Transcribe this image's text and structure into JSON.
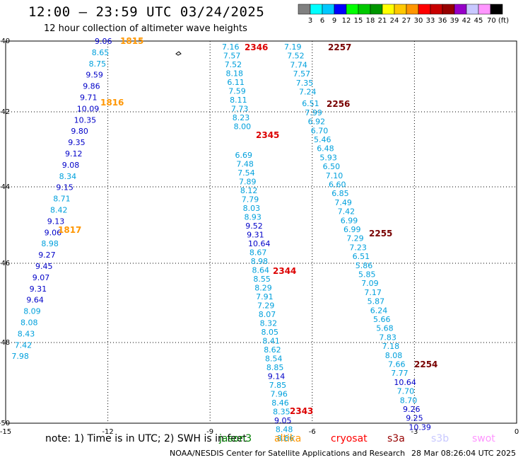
{
  "title": "12:00 – 23:59 UTC 03/24/2025",
  "subtitle": "12 hour collection of altimeter wave heights",
  "colorbar": {
    "colors": [
      "#808080",
      "#00ffff",
      "#00c8ff",
      "#0000ff",
      "#00ff00",
      "#00c800",
      "#009600",
      "#ffff00",
      "#ffc800",
      "#ff9600",
      "#ff0000",
      "#c80000",
      "#960000",
      "#9600c8",
      "#c8c8ff",
      "#ff96ff",
      "#000000"
    ],
    "labels": [
      "3",
      "6",
      "9",
      "12",
      "15",
      "18",
      "21",
      "24",
      "27",
      "30",
      "33",
      "36",
      "39",
      "42",
      "45",
      "70 (ft)"
    ]
  },
  "axes": {
    "x_ticks": [
      "-15",
      "-12",
      "-9",
      "-6",
      "-3",
      "0"
    ],
    "y_ticks": [
      "-40",
      "-42",
      "-44",
      "-46",
      "-48",
      "-50"
    ]
  },
  "tracks": [
    {
      "name": "track-west",
      "labels": [
        {
          "v": "9.06",
          "c": "#0000c8"
        },
        {
          "v": "8.65",
          "c": "#00a0dc"
        },
        {
          "v": "8.75",
          "c": "#00a0dc"
        },
        {
          "v": "9.59",
          "c": "#0000c8"
        },
        {
          "v": "9.86",
          "c": "#0000c8"
        },
        {
          "v": "9.71",
          "c": "#0000c8"
        },
        {
          "v": "10.09",
          "c": "#0000c8"
        },
        {
          "v": "10.35",
          "c": "#0000c8"
        },
        {
          "v": "9.80",
          "c": "#0000c8"
        },
        {
          "v": "9.35",
          "c": "#0000c8"
        },
        {
          "v": "9.12",
          "c": "#0000c8"
        },
        {
          "v": "9.08",
          "c": "#0000c8"
        },
        {
          "v": "8.34",
          "c": "#00a0dc"
        },
        {
          "v": "9.15",
          "c": "#0000c8"
        },
        {
          "v": "8.71",
          "c": "#00a0dc"
        },
        {
          "v": "8.42",
          "c": "#00a0dc"
        },
        {
          "v": "9.13",
          "c": "#0000c8"
        },
        {
          "v": "9.06",
          "c": "#0000c8"
        },
        {
          "v": "8.98",
          "c": "#00a0dc"
        },
        {
          "v": "9.27",
          "c": "#0000c8"
        },
        {
          "v": "9.45",
          "c": "#0000c8"
        },
        {
          "v": "9.07",
          "c": "#0000c8"
        },
        {
          "v": "9.31",
          "c": "#0000c8"
        },
        {
          "v": "9.64",
          "c": "#0000c8"
        },
        {
          "v": "8.09",
          "c": "#00a0dc"
        },
        {
          "v": "8.08",
          "c": "#00a0dc"
        },
        {
          "v": "8.43",
          "c": "#00a0dc"
        },
        {
          "v": "7.42",
          "c": "#00a0dc"
        },
        {
          "v": "7.98",
          "c": "#00a0dc"
        }
      ]
    },
    {
      "name": "track-center",
      "labels": [
        {
          "v": "7.16",
          "c": "#00a0dc"
        },
        {
          "v": "7.57",
          "c": "#00a0dc"
        },
        {
          "v": "7.52",
          "c": "#00a0dc"
        },
        {
          "v": "8.18",
          "c": "#00a0dc"
        },
        {
          "v": "6.11",
          "c": "#00a0dc"
        },
        {
          "v": "7.59",
          "c": "#00a0dc"
        },
        {
          "v": "8.11",
          "c": "#00a0dc"
        },
        {
          "v": "7.73",
          "c": "#00a0dc"
        },
        {
          "v": "8.23",
          "c": "#00a0dc"
        },
        {
          "v": "8.00",
          "c": "#00a0dc"
        },
        {
          "v": "6.69",
          "c": "#00a0dc"
        },
        {
          "v": "7.48",
          "c": "#00a0dc"
        },
        {
          "v": "7.54",
          "c": "#00a0dc"
        },
        {
          "v": "7.89",
          "c": "#00a0dc"
        },
        {
          "v": "8.12",
          "c": "#00a0dc"
        },
        {
          "v": "7.79",
          "c": "#00a0dc"
        },
        {
          "v": "8.03",
          "c": "#00a0dc"
        },
        {
          "v": "8.93",
          "c": "#00a0dc"
        },
        {
          "v": "9.52",
          "c": "#0000c8"
        },
        {
          "v": "9.31",
          "c": "#0000c8"
        },
        {
          "v": "10.64",
          "c": "#0000c8"
        },
        {
          "v": "8.67",
          "c": "#00a0dc"
        },
        {
          "v": "8.98",
          "c": "#00a0dc"
        },
        {
          "v": "8.64",
          "c": "#00a0dc"
        },
        {
          "v": "8.55",
          "c": "#00a0dc"
        },
        {
          "v": "8.29",
          "c": "#00a0dc"
        },
        {
          "v": "7.91",
          "c": "#00a0dc"
        },
        {
          "v": "7.29",
          "c": "#00a0dc"
        },
        {
          "v": "8.07",
          "c": "#00a0dc"
        },
        {
          "v": "8.32",
          "c": "#00a0dc"
        },
        {
          "v": "8.05",
          "c": "#00a0dc"
        },
        {
          "v": "8.41",
          "c": "#00a0dc"
        },
        {
          "v": "8.62",
          "c": "#00a0dc"
        },
        {
          "v": "8.54",
          "c": "#00a0dc"
        },
        {
          "v": "8.85",
          "c": "#00a0dc"
        },
        {
          "v": "9.14",
          "c": "#0000c8"
        },
        {
          "v": "7.85",
          "c": "#00a0dc"
        },
        {
          "v": "7.96",
          "c": "#00a0dc"
        },
        {
          "v": "8.46",
          "c": "#00a0dc"
        },
        {
          "v": "8.35",
          "c": "#00a0dc"
        },
        {
          "v": "9.05",
          "c": "#0000c8"
        },
        {
          "v": "8.48",
          "c": "#00a0dc"
        },
        {
          "v": "8.86",
          "c": "#00a0dc"
        }
      ]
    },
    {
      "name": "track-east",
      "labels": [
        {
          "v": "7.19",
          "c": "#00a0dc"
        },
        {
          "v": "7.52",
          "c": "#00a0dc"
        },
        {
          "v": "7.74",
          "c": "#00a0dc"
        },
        {
          "v": "7.57",
          "c": "#00a0dc"
        },
        {
          "v": "7.35",
          "c": "#00a0dc"
        },
        {
          "v": "7.24",
          "c": "#00a0dc"
        },
        {
          "v": "6.51",
          "c": "#00a0dc"
        },
        {
          "v": "7.99",
          "c": "#00a0dc"
        },
        {
          "v": "6.92",
          "c": "#00a0dc"
        },
        {
          "v": "6.70",
          "c": "#00a0dc"
        },
        {
          "v": "5.46",
          "c": "#00a0dc"
        },
        {
          "v": "6.48",
          "c": "#00a0dc"
        },
        {
          "v": "5.93",
          "c": "#00a0dc"
        },
        {
          "v": "6.50",
          "c": "#00a0dc"
        },
        {
          "v": "7.10",
          "c": "#00a0dc"
        },
        {
          "v": "6.60",
          "c": "#00a0dc"
        },
        {
          "v": "6.85",
          "c": "#00a0dc"
        },
        {
          "v": "7.49",
          "c": "#00a0dc"
        },
        {
          "v": "7.42",
          "c": "#00a0dc"
        },
        {
          "v": "6.99",
          "c": "#00a0dc"
        },
        {
          "v": "6.99",
          "c": "#00a0dc"
        },
        {
          "v": "7.29",
          "c": "#00a0dc"
        },
        {
          "v": "7.23",
          "c": "#00a0dc"
        },
        {
          "v": "6.51",
          "c": "#00a0dc"
        },
        {
          "v": "5.86",
          "c": "#00a0dc"
        },
        {
          "v": "5.85",
          "c": "#00a0dc"
        },
        {
          "v": "7.09",
          "c": "#00a0dc"
        },
        {
          "v": "7.17",
          "c": "#00a0dc"
        },
        {
          "v": "5.87",
          "c": "#00a0dc"
        },
        {
          "v": "6.24",
          "c": "#00a0dc"
        },
        {
          "v": "5.66",
          "c": "#00a0dc"
        },
        {
          "v": "5.68",
          "c": "#00a0dc"
        },
        {
          "v": "7.83",
          "c": "#00a0dc"
        },
        {
          "v": "7.18",
          "c": "#00a0dc"
        },
        {
          "v": "8.08",
          "c": "#00a0dc"
        },
        {
          "v": "7.66",
          "c": "#00a0dc"
        },
        {
          "v": "7.77",
          "c": "#00a0dc"
        },
        {
          "v": "10.64",
          "c": "#0000c8"
        },
        {
          "v": "7.70",
          "c": "#00a0dc"
        },
        {
          "v": "8.70",
          "c": "#00a0dc"
        },
        {
          "v": "9.26",
          "c": "#0000c8"
        },
        {
          "v": "9.25",
          "c": "#0000c8"
        },
        {
          "v": "10.39",
          "c": "#0000c8"
        }
      ]
    }
  ],
  "time_labels": [
    {
      "v": "1815",
      "c": "#ff9600"
    },
    {
      "v": "1816",
      "c": "#ff9600"
    },
    {
      "v": "1817",
      "c": "#ff9600"
    },
    {
      "v": "2346",
      "c": "#dc0000"
    },
    {
      "v": "2345",
      "c": "#dc0000"
    },
    {
      "v": "2344",
      "c": "#dc0000"
    },
    {
      "v": "2343",
      "c": "#dc0000"
    },
    {
      "v": "2257",
      "c": "#780000"
    },
    {
      "v": "2256",
      "c": "#780000"
    },
    {
      "v": "2255",
      "c": "#780000"
    },
    {
      "v": "2254",
      "c": "#780000"
    }
  ],
  "footer": {
    "note": "note:  1) Time is in UTC; 2) SWH is in feet",
    "credit": "NOAA/NESDIS Center for Satellite Applications and Research",
    "timestamp": "28 Mar 08:26:04 UTC 2025",
    "satellites": [
      {
        "name": "jason3",
        "color": "#008000"
      },
      {
        "name": "altika",
        "color": "#ff9600"
      },
      {
        "name": "cryosat",
        "color": "#ff0000"
      },
      {
        "name": "s3a",
        "color": "#960000"
      },
      {
        "name": "s3b",
        "color": "#c8c8ff"
      },
      {
        "name": "swot",
        "color": "#ff96ff"
      }
    ]
  }
}
